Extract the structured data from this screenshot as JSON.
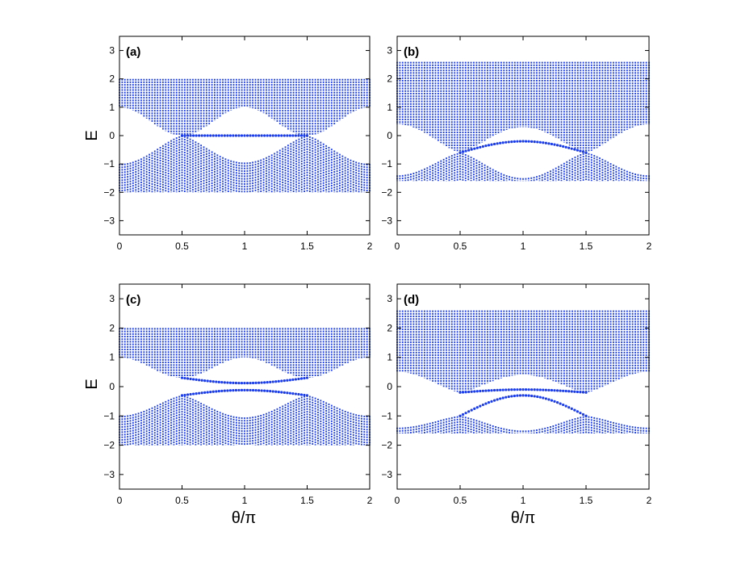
{
  "chart_data": [
    {
      "type": "scatter",
      "panel_label": "(a)",
      "xlabel": "",
      "ylabel": "E",
      "xlim": [
        0,
        2
      ],
      "ylim": [
        -3.5,
        3.5
      ],
      "xticks": [
        "0",
        "0.5",
        "1",
        "1.5",
        "2"
      ],
      "yticks": [
        "3",
        "2",
        "1",
        "0",
        "-1",
        "-2",
        "-3"
      ],
      "color": "#1a3cf0",
      "bands": {
        "upper_top": 2.0,
        "upper_bottom_edge": 1.0,
        "upper_bottom_mid": 0.0,
        "lower_bottom": -2.0,
        "lower_top_edge": -1.0,
        "lower_top_mid": 0.0,
        "lower_top_inner": -0.95
      },
      "edge_states": [
        {
          "x_range": [
            0.5,
            1.5
          ],
          "y_edge": 0.0,
          "y_mid": 0.0
        }
      ]
    },
    {
      "type": "scatter",
      "panel_label": "(b)",
      "xlabel": "",
      "ylabel": "",
      "xlim": [
        0,
        2
      ],
      "ylim": [
        -3.5,
        3.5
      ],
      "xticks": [
        "0",
        "0.5",
        "1",
        "1.5",
        "2"
      ],
      "yticks": [
        "3",
        "2",
        "1",
        "0",
        "-1",
        "-2",
        "-3"
      ],
      "color": "#1a3cf0",
      "bands": {
        "upper_top": 2.6,
        "upper_bottom_edge": 0.4,
        "upper_bottom_mid": -0.6,
        "upper_bottom_center": 0.3,
        "lower_bottom": -1.6,
        "lower_top_edge": -1.4,
        "lower_top_mid": -0.6,
        "lower_top_inner": -1.5
      },
      "edge_states": [
        {
          "x_range": [
            0.5,
            1.5
          ],
          "y_edge": -0.6,
          "y_mid": -0.2
        }
      ]
    },
    {
      "type": "scatter",
      "panel_label": "(c)",
      "xlabel": "θ/π",
      "ylabel": "E",
      "xlim": [
        0,
        2
      ],
      "ylim": [
        -3.5,
        3.5
      ],
      "xticks": [
        "0",
        "0.5",
        "1",
        "1.5",
        "2"
      ],
      "yticks": [
        "3",
        "2",
        "1",
        "0",
        "-1",
        "-2",
        "-3"
      ],
      "color": "#1a3cf0",
      "bands": {
        "upper_top": 2.0,
        "upper_bottom_edge": 1.0,
        "upper_bottom_mid": 0.3,
        "lower_bottom": -2.0,
        "lower_top_edge": -1.0,
        "lower_top_mid": -0.3,
        "lower_top_inner": -1.05
      },
      "edge_states": [
        {
          "x_range": [
            0.5,
            1.5
          ],
          "y_edge": 0.3,
          "y_mid": 0.12
        },
        {
          "x_range": [
            0.5,
            1.5
          ],
          "y_edge": -0.3,
          "y_mid": -0.12
        }
      ]
    },
    {
      "type": "scatter",
      "panel_label": "(d)",
      "xlabel": "θ/π",
      "ylabel": "",
      "xlim": [
        0,
        2
      ],
      "ylim": [
        -3.5,
        3.5
      ],
      "xticks": [
        "0",
        "0.5",
        "1",
        "1.5",
        "2"
      ],
      "yticks": [
        "3",
        "2",
        "1",
        "0",
        "-1",
        "-2",
        "-3"
      ],
      "color": "#1a3cf0",
      "bands": {
        "upper_top": 2.6,
        "upper_bottom_edge": 0.5,
        "upper_bottom_mid": -0.2,
        "upper_bottom_center": 0.4,
        "lower_bottom": -1.6,
        "lower_top_edge": -1.4,
        "lower_top_mid": -1.0,
        "lower_top_inner": -1.5
      },
      "edge_states": [
        {
          "x_range": [
            0.5,
            1.5
          ],
          "y_edge": -0.2,
          "y_mid": -0.1
        },
        {
          "x_range": [
            0.5,
            1.5
          ],
          "y_edge": -1.0,
          "y_mid": -0.3
        }
      ]
    }
  ]
}
